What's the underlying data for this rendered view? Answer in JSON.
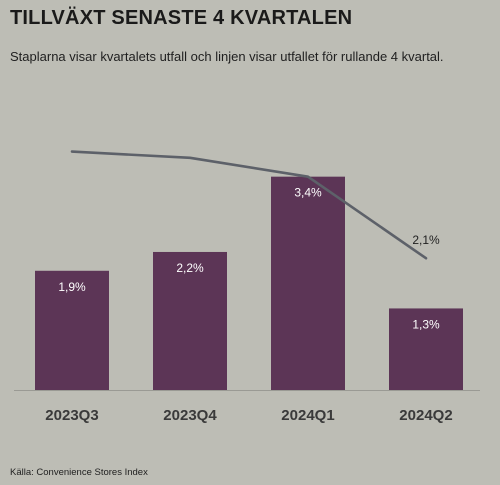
{
  "title": "TILLVÄXT SENASTE 4 KVARTALEN",
  "subtitle": "Staplarna visar kvartalets utfall och linjen visar utfallet för rullande 4 kvartal.",
  "source": "Källa: Convenience Stores Index",
  "colors": {
    "background": "#bdbdb5",
    "bar": "#5c3556",
    "line": "#5d6169",
    "bar_label": "#ffffff",
    "text": "#1f1f1f"
  },
  "chart_data": {
    "type": "bar",
    "categories": [
      "2023Q3",
      "2023Q4",
      "2024Q1",
      "2024Q2"
    ],
    "series": [
      {
        "type": "bar",
        "values": [
          1.9,
          2.2,
          3.4,
          1.3
        ],
        "labels": [
          "1,9%",
          "2,2%",
          "3,4%",
          "1,3%"
        ]
      },
      {
        "type": "line",
        "values": [
          3.8,
          3.7,
          3.4,
          2.1
        ],
        "labels": [
          "",
          "",
          "",
          "2,1%"
        ]
      }
    ],
    "ylim": [
      0,
      5.1
    ],
    "legend": "none",
    "grid": false
  }
}
